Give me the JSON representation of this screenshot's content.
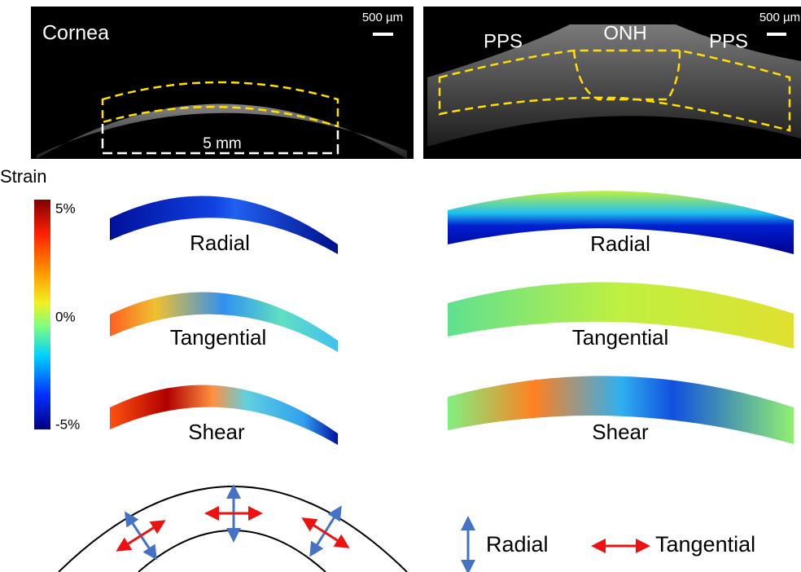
{
  "panels": [
    {
      "label": "Cornea",
      "scale_bar": "500 µm",
      "dimension": "5 mm"
    },
    {
      "labels": [
        "PPS",
        "ONH",
        "PPS"
      ],
      "scale_bar": "500 µm"
    }
  ],
  "colorbar": {
    "title": "Strain",
    "ticks": [
      "5%",
      "0%",
      "-5%"
    ]
  },
  "strain_maps": {
    "left": [
      "Radial",
      "Tangential",
      "Shear"
    ],
    "right": [
      "Radial",
      "Tangential",
      "Shear"
    ]
  },
  "legend": [
    "Radial",
    "Tangential"
  ]
}
